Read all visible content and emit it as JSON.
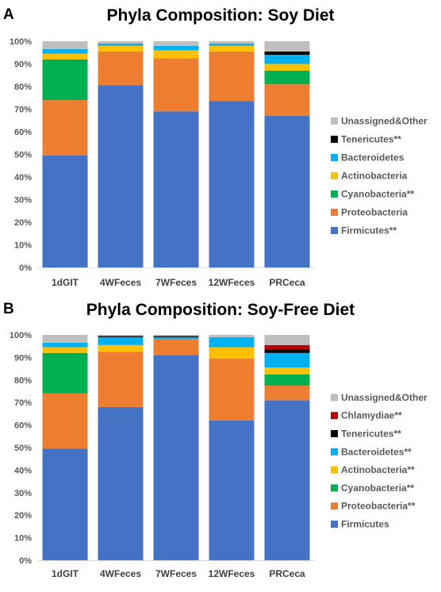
{
  "panels": [
    {
      "letter": "A",
      "colors": {
        "Firmicutes**": "#4472c4",
        "Proteobacteria": "#ed7d31",
        "Cyanobacteria**": "#00b050",
        "Actinobacteria": "#ffc000",
        "Bacteroidetes": "#00b0f0",
        "Tenericutes**": "#000000",
        "Unassigned&Other": "#bfbfbf"
      }
    },
    {
      "letter": "B",
      "colors": {
        "Firmicutes": "#4472c4",
        "Proteobacteria**": "#ed7d31",
        "Cyanobacteria**": "#00b050",
        "Actinobacteria**": "#ffc000",
        "Bacteroidetes**": "#00b0f0",
        "Tenericutes**": "#000000",
        "Chlamydiae**": "#c00000",
        "Unassigned&Other": "#bfbfbf"
      }
    }
  ],
  "chart_data": [
    {
      "type": "bar",
      "stacked": true,
      "title": "Phyla Composition: Soy Diet",
      "categories": [
        "1dGIT",
        "4WFeces",
        "7WFeces",
        "12WFeces",
        "PRCeca"
      ],
      "ylim": [
        0,
        100
      ],
      "yticks": [
        "0%",
        "10%",
        "20%",
        "30%",
        "40%",
        "50%",
        "60%",
        "70%",
        "80%",
        "90%",
        "100%"
      ],
      "grid": false,
      "legend_position": "right",
      "series": [
        {
          "name": "Firmicutes**",
          "values": [
            49.5,
            80.5,
            69,
            73.5,
            67
          ]
        },
        {
          "name": "Proteobacteria",
          "values": [
            24.5,
            15,
            23.5,
            22,
            14
          ]
        },
        {
          "name": "Cyanobacteria**",
          "values": [
            18,
            0,
            0,
            0,
            6
          ]
        },
        {
          "name": "Actinobacteria",
          "values": [
            2.5,
            2.5,
            3.5,
            2.5,
            3
          ]
        },
        {
          "name": "Bacteroidetes",
          "values": [
            2,
            1,
            2,
            1,
            4
          ]
        },
        {
          "name": "Tenericutes**",
          "values": [
            0,
            0,
            0,
            0,
            1.5
          ]
        },
        {
          "name": "Unassigned&Other",
          "values": [
            3.5,
            1,
            2,
            1,
            4.5
          ]
        }
      ]
    },
    {
      "type": "bar",
      "stacked": true,
      "title": "Phyla Composition: Soy-Free Diet",
      "categories": [
        "1dGIT",
        "4WFeces",
        "7WFeces",
        "12WFeces",
        "PRCeca"
      ],
      "ylim": [
        0,
        100
      ],
      "yticks": [
        "0%",
        "10%",
        "20%",
        "30%",
        "40%",
        "50%",
        "60%",
        "70%",
        "80%",
        "90%",
        "100%"
      ],
      "grid": false,
      "legend_position": "right",
      "series": [
        {
          "name": "Firmicutes",
          "values": [
            49.5,
            68,
            91,
            62,
            71
          ]
        },
        {
          "name": "Proteobacteria**",
          "values": [
            24.5,
            24.5,
            7,
            27.5,
            6.5
          ]
        },
        {
          "name": "Cyanobacteria**",
          "values": [
            18,
            0,
            0,
            0,
            5
          ]
        },
        {
          "name": "Actinobacteria**",
          "values": [
            2.5,
            3,
            0,
            5,
            3
          ]
        },
        {
          "name": "Bacteroidetes**",
          "values": [
            2,
            3.5,
            1,
            4.5,
            6.5
          ]
        },
        {
          "name": "Tenericutes**",
          "values": [
            0,
            0.5,
            0.5,
            0,
            1.5
          ]
        },
        {
          "name": "Chlamydiae**",
          "values": [
            0,
            0,
            0,
            0,
            2
          ]
        },
        {
          "name": "Unassigned&Other",
          "values": [
            3.5,
            0.5,
            0.5,
            1,
            4.5
          ]
        }
      ]
    }
  ]
}
